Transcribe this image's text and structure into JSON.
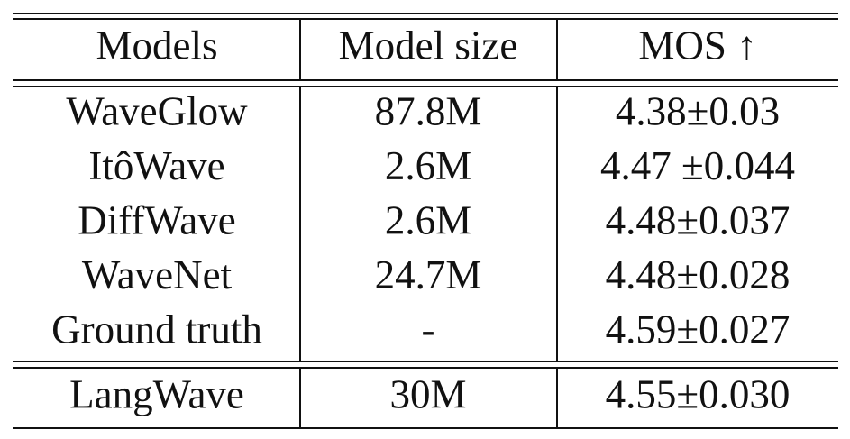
{
  "table": {
    "header": [
      "Models",
      "Model size",
      "MOS ↑"
    ],
    "rows": [
      [
        "WaveGlow",
        "87.8M",
        "4.38±0.03"
      ],
      [
        "ItôWave",
        "2.6M",
        "4.47 ±0.044"
      ],
      [
        "DiffWave",
        "2.6M",
        "4.48±0.037"
      ],
      [
        "WaveNet",
        "24.7M",
        "4.48±0.028"
      ],
      [
        "Ground truth",
        "-",
        "4.59±0.027"
      ]
    ],
    "final_row": [
      "LangWave",
      "30M",
      "4.55±0.030"
    ]
  }
}
